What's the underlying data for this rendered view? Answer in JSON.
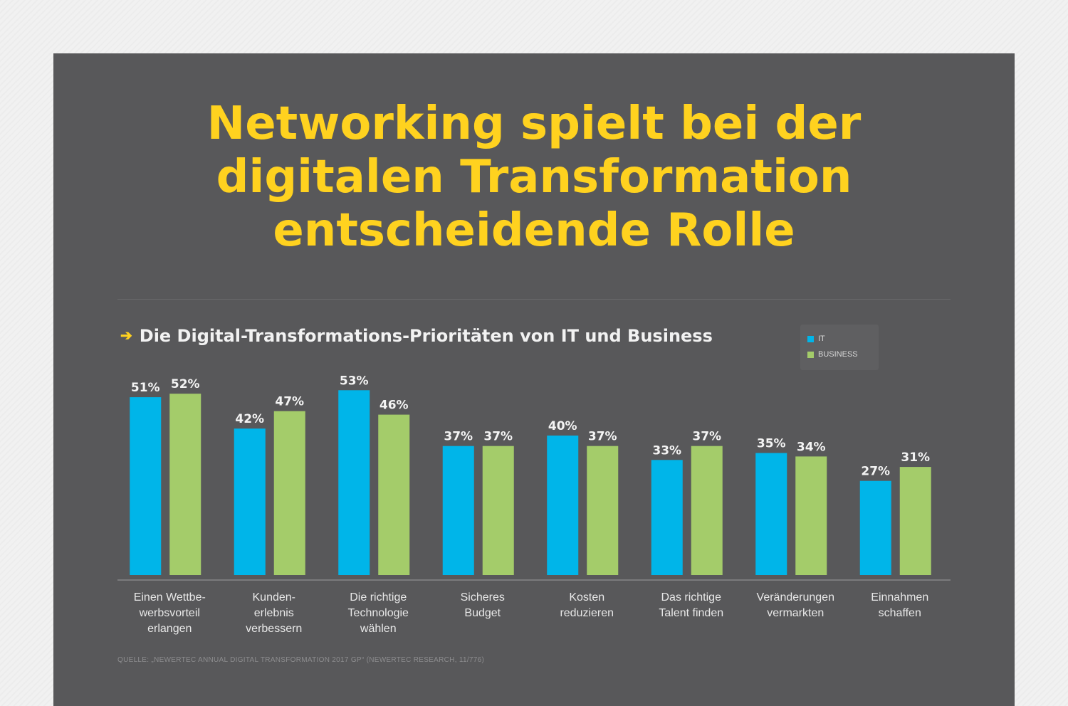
{
  "title_lines": [
    "Networking spielt bei der",
    "digitalen Transformation",
    "entscheidende Rolle"
  ],
  "subtitle_arrow": "➔",
  "subtitle": "Die Digital-Transformations-Prioritäten von IT und Business",
  "source": "QUELLE: „NEWERTEC ANNUAL DIGITAL TRANSFORMATION 2017 GP“ (NEWERTEC RESEARCH, 11/776)",
  "colors": {
    "it": "#00b5e9",
    "business": "#a4cc6a",
    "title": "#ffd21f",
    "panel": "#58585a"
  },
  "chart_data": {
    "type": "bar",
    "categories": [
      [
        "Einen Wettbe-",
        "werbsvorteil",
        "erlangen"
      ],
      [
        "Kunden-",
        "erlebnis",
        "verbessern"
      ],
      [
        "Die richtige",
        "Technologie",
        "wählen"
      ],
      [
        "Sicheres",
        "Budget"
      ],
      [
        "Kosten",
        "reduzieren"
      ],
      [
        "Das richtige",
        "Talent finden"
      ],
      [
        "Veränderungen",
        "vermarkten"
      ],
      [
        "Einnahmen",
        "schaffen"
      ]
    ],
    "series": [
      {
        "name": "IT",
        "color": "#00b5e9",
        "values": [
          51,
          42,
          53,
          37,
          40,
          33,
          35,
          27
        ]
      },
      {
        "name": "BUSINESS",
        "color": "#a4cc6a",
        "values": [
          52,
          47,
          46,
          37,
          37,
          37,
          34,
          31
        ]
      }
    ],
    "value_suffix": "%",
    "ylim": [
      0,
      100
    ],
    "legend_position": "top-right",
    "grid": false
  }
}
